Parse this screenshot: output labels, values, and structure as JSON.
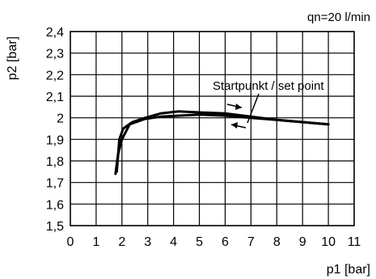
{
  "chart_data": {
    "type": "line",
    "xlabel": "p1 [bar]",
    "ylabel": "p2 [bar]",
    "xlim": [
      0,
      11
    ],
    "ylim": [
      1.5,
      2.4
    ],
    "x_ticks": [
      "0",
      "1",
      "2",
      "3",
      "4",
      "5",
      "6",
      "7",
      "8",
      "9",
      "10",
      "11"
    ],
    "y_ticks": [
      "1,5",
      "1,6",
      "1,7",
      "1,8",
      "1,9",
      "2",
      "2,1",
      "2,2",
      "2,3",
      "2,4"
    ],
    "grid": true,
    "annotation_flow": "qn=20 l/min",
    "annotation_setpoint": "Startpunkt / set point",
    "series": [
      {
        "x": [
          1.8,
          1.9,
          2.05,
          2.4,
          2.9,
          3.5,
          4.2,
          5,
          6,
          7,
          8,
          9,
          10
        ],
        "y": [
          1.75,
          1.9,
          1.95,
          1.98,
          2.0,
          2.02,
          2.03,
          2.025,
          2.02,
          2.005,
          1.99,
          1.98,
          1.97
        ]
      },
      {
        "x": [
          10,
          9,
          8,
          7,
          6,
          5,
          4.2,
          3.5,
          2.9,
          2.3,
          2.0,
          1.85,
          1.75
        ],
        "y": [
          1.97,
          1.98,
          1.99,
          2.0,
          2.01,
          2.015,
          2.01,
          2.005,
          1.995,
          1.97,
          1.9,
          1.83,
          1.74
        ]
      }
    ]
  }
}
